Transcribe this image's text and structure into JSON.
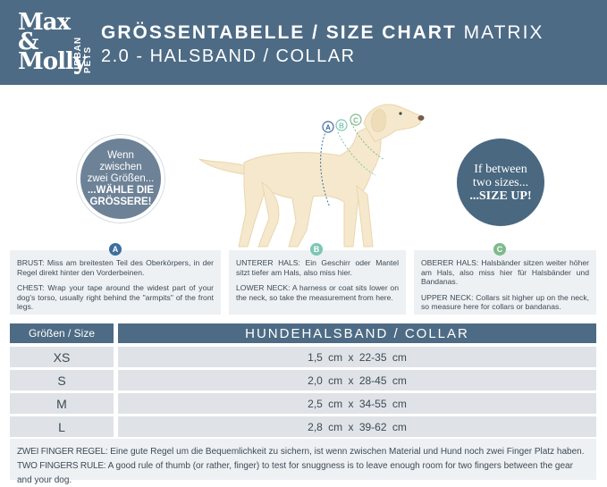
{
  "header": {
    "logo_text": "Max & Molly",
    "logo_sub": "URBAN PETS",
    "title_bold": "GRÖSSENTABELLE / SIZE CHART",
    "title_light": "MATRIX",
    "subtitle": "2.0 - HALSBAND / COLLAR",
    "bg_color": "#4d6b84"
  },
  "tips": {
    "left": {
      "line1": "Wenn",
      "line2": "zwischen",
      "line3": "zwei Größen...",
      "bold1": "...WÄHLE DIE",
      "bold2": "GRÖSSERE!"
    },
    "right": {
      "line1": "If between",
      "line2": "two sizes...",
      "bold": "...SIZE UP!"
    }
  },
  "dog": {
    "markers": [
      "A",
      "B",
      "C"
    ],
    "body_color": "#f6e8cc"
  },
  "measurements": [
    {
      "badge": "A",
      "de_label": "BRUST:",
      "de_text": "Miss am breitesten Teil des Oberkörpers, in der Regel direkt hinter den Vorderbeinen.",
      "en_label": "CHEST:",
      "en_text": "Wrap your tape around the widest part of your dog's torso, usually right behind the \"armpits\" of the front legs.",
      "color": "#3c6e9e"
    },
    {
      "badge": "B",
      "de_label": "UNTERER HALS:",
      "de_text": "Ein Geschirr oder Mantel sitzt tiefer am Hals, also miss hier.",
      "en_label": "LOWER NECK:",
      "en_text": "A harness or coat sits lower on the neck, so take the measurement from here.",
      "color": "#7cc7b3"
    },
    {
      "badge": "C",
      "de_label": "OBERER HALS:",
      "de_text": "Halsbänder sitzen weiter höher am Hals, also miss hier für Halsbänder und Bandanas.",
      "en_label": "UPPER NECK:",
      "en_text": "Collars sit higher up on the neck, so measure here for collars or bandanas.",
      "color": "#7fba8a"
    }
  ],
  "table": {
    "size_header": "Größen / Size",
    "collar_header": "HUNDEHALSBAND / COLLAR",
    "rows": [
      {
        "size": "XS",
        "value": "1,5 cm x 22-35 cm"
      },
      {
        "size": "S",
        "value": "2,0 cm x 28-45 cm"
      },
      {
        "size": "M",
        "value": "2,5 cm x 34-55 cm"
      },
      {
        "size": "L",
        "value": "2,8 cm x 39-62 cm"
      }
    ]
  },
  "footer": {
    "de_label": "ZWEI FINGER REGEL:",
    "de_text": "Eine gute Regel um die Bequemlichkeit zu sichern, ist wenn zwischen Material und Hund noch zwei Finger Platz haben.",
    "en_label": "TWO FINGERS RULE:",
    "en_text": "A good rule of thumb (or rather, finger) to test for snuggness is to leave enough room for two fingers between the gear and your dog."
  }
}
